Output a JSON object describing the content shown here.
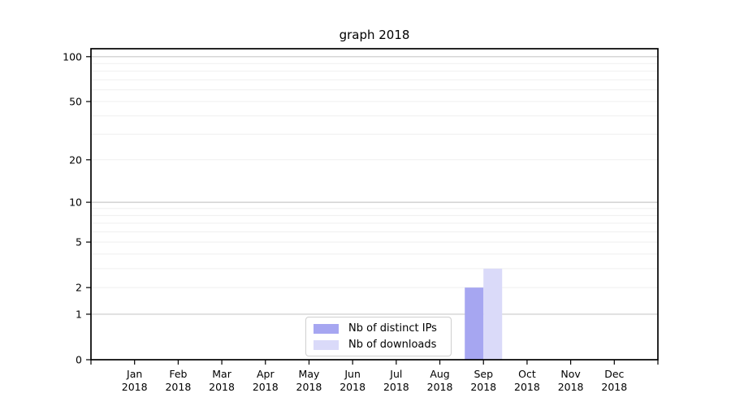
{
  "title": "graph 2018",
  "chart_data": {
    "type": "bar",
    "title": "graph 2018",
    "categories": [
      "Jan",
      "Feb",
      "Mar",
      "Apr",
      "May",
      "Jun",
      "Jul",
      "Aug",
      "Sep",
      "Oct",
      "Nov",
      "Dec"
    ],
    "tick_year": "2018",
    "series": [
      {
        "name": "Nb of distinct IPs",
        "color": "#a6a6f1",
        "values": [
          0,
          0,
          0,
          0,
          0,
          0,
          0,
          0,
          2,
          0,
          0,
          0
        ]
      },
      {
        "name": "Nb of downloads",
        "color": "#dadaf9",
        "values": [
          0,
          0,
          0,
          0,
          0,
          0,
          0,
          0,
          3,
          0,
          0,
          0
        ]
      }
    ],
    "y_ticks": [
      0,
      1,
      2,
      5,
      10,
      20,
      50,
      100
    ],
    "ylim": [
      0,
      113
    ],
    "scale": "log1p",
    "grid": "horizontal",
    "legend_position": "bottom-center",
    "colors": {
      "axis": "#000000",
      "major_grid": "#c9c9c9",
      "minor_grid": "#efefef",
      "legend_border": "#cfcfcf"
    }
  }
}
